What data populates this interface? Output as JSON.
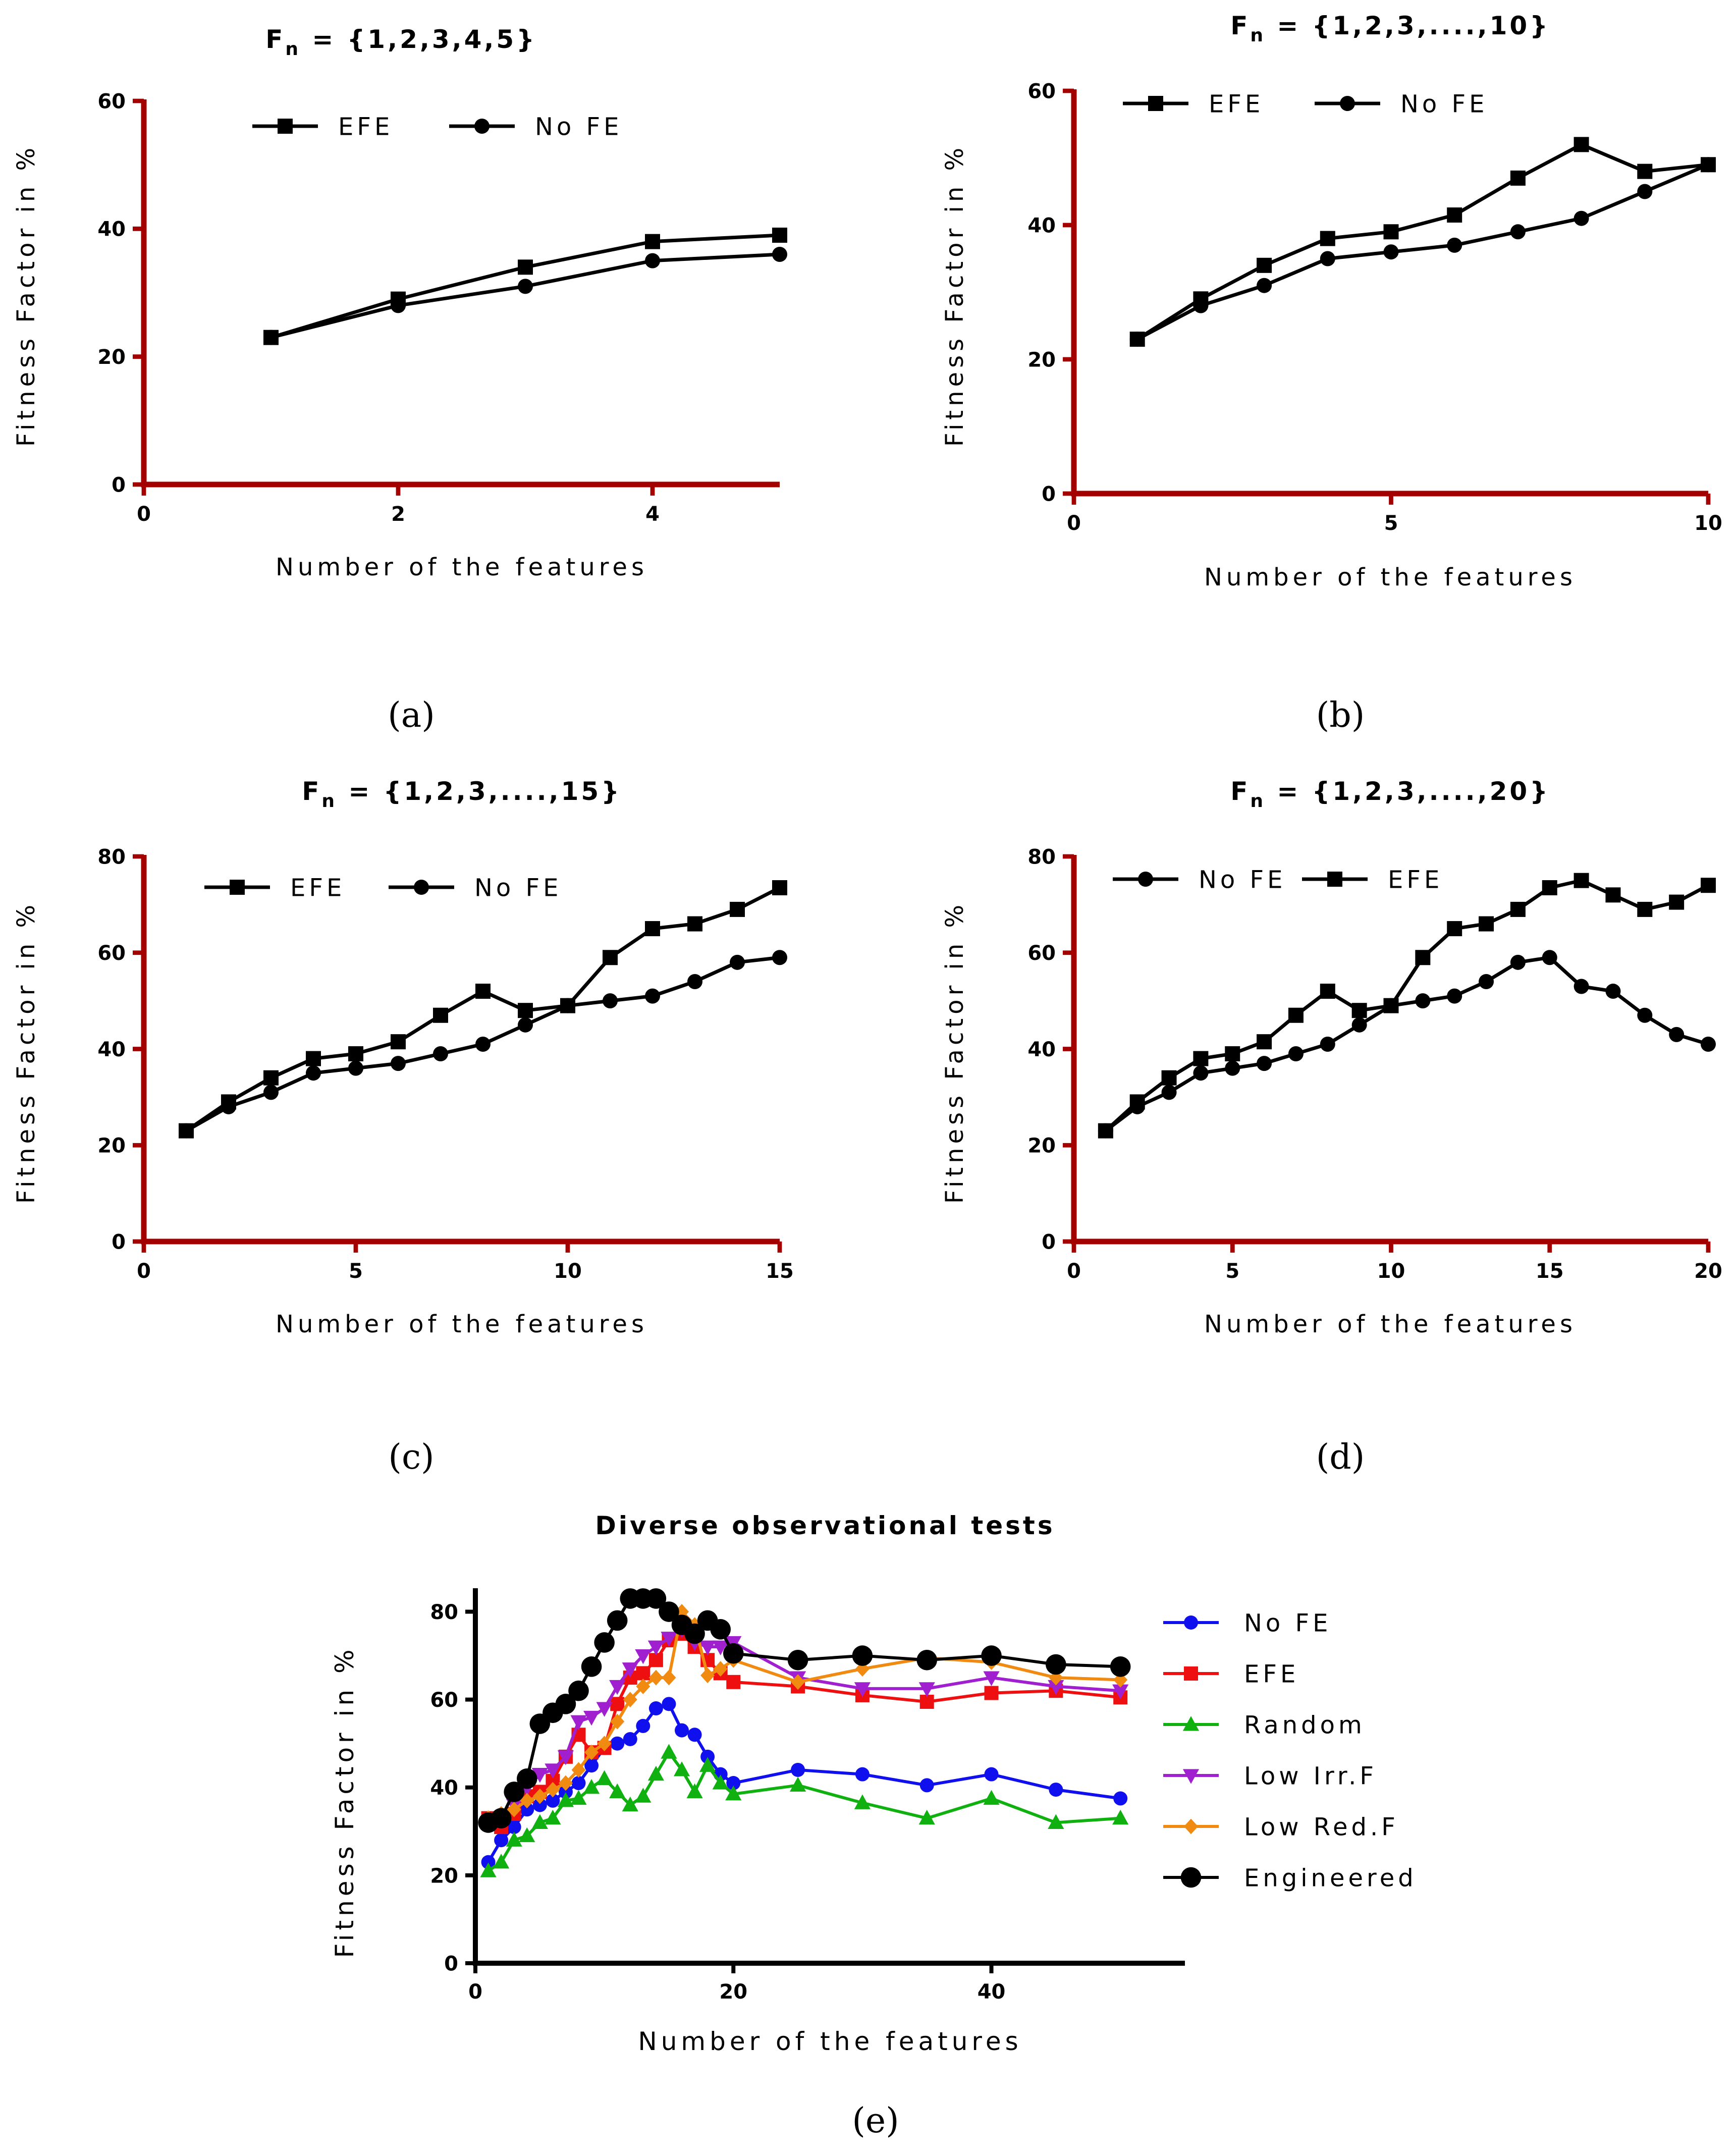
{
  "chart_data": [
    {
      "id": "a",
      "type": "line",
      "title_main": "F",
      "title_sub": "n",
      "title_rest": " = {1,2,3,4,5}",
      "xlabel": "Number of the features",
      "ylabel": "Fitness Factor in %",
      "caption": "(a)",
      "xlim": [
        0,
        5
      ],
      "ylim": [
        0,
        60
      ],
      "xticks": [
        0,
        2,
        4
      ],
      "yticks": [
        0,
        20,
        40,
        60
      ],
      "axis_color": "#a30000",
      "legend_position": "top",
      "series": [
        {
          "name": "EFE",
          "marker": "square",
          "color": "#000000",
          "x": [
            1,
            2,
            3,
            4,
            5
          ],
          "y": [
            23,
            29,
            34,
            38,
            39
          ]
        },
        {
          "name": "No FE",
          "marker": "circle",
          "color": "#000000",
          "x": [
            1,
            2,
            3,
            4,
            5
          ],
          "y": [
            23,
            28,
            31,
            35,
            36
          ]
        }
      ]
    },
    {
      "id": "b",
      "type": "line",
      "title_main": "F",
      "title_sub": "n",
      "title_rest": " = {1,2,3,....,10}",
      "xlabel": "Number of the features",
      "ylabel": "Fitness Factor in %",
      "caption": "(b)",
      "xlim": [
        0,
        10
      ],
      "ylim": [
        0,
        60
      ],
      "xticks": [
        0,
        5,
        10
      ],
      "yticks": [
        0,
        20,
        40,
        60
      ],
      "axis_color": "#a30000",
      "legend_position": "top-left",
      "series": [
        {
          "name": "EFE",
          "marker": "square",
          "color": "#000000",
          "x": [
            1,
            2,
            3,
            4,
            5,
            6,
            7,
            8,
            9,
            10
          ],
          "y": [
            23,
            29,
            34,
            38,
            39,
            41.5,
            47,
            52,
            48,
            49
          ]
        },
        {
          "name": "No FE",
          "marker": "circle",
          "color": "#000000",
          "x": [
            1,
            2,
            3,
            4,
            5,
            6,
            7,
            8,
            9,
            10
          ],
          "y": [
            23,
            28,
            31,
            35,
            36,
            37,
            39,
            41,
            45,
            49
          ]
        }
      ]
    },
    {
      "id": "c",
      "type": "line",
      "title_main": "F",
      "title_sub": "n",
      "title_rest": " = {1,2,3,....,15}",
      "xlabel": "Number of the features",
      "ylabel": "Fitness Factor in %",
      "caption": "(c)",
      "xlim": [
        0,
        15
      ],
      "ylim": [
        0,
        80
      ],
      "xticks": [
        0,
        5,
        10,
        15
      ],
      "yticks": [
        0,
        20,
        40,
        60,
        80
      ],
      "axis_color": "#a30000",
      "legend_position": "top-left",
      "series": [
        {
          "name": "EFE",
          "marker": "square",
          "color": "#000000",
          "x": [
            1,
            2,
            3,
            4,
            5,
            6,
            7,
            8,
            9,
            10,
            11,
            12,
            13,
            14,
            15
          ],
          "y": [
            23,
            29,
            34,
            38,
            39,
            41.5,
            47,
            52,
            48,
            49,
            59,
            65,
            66,
            69,
            73.5
          ]
        },
        {
          "name": "No FE",
          "marker": "circle",
          "color": "#000000",
          "x": [
            1,
            2,
            3,
            4,
            5,
            6,
            7,
            8,
            9,
            10,
            11,
            12,
            13,
            14,
            15
          ],
          "y": [
            23,
            28,
            31,
            35,
            36,
            37,
            39,
            41,
            45,
            49,
            50,
            51,
            54,
            58,
            59
          ]
        }
      ]
    },
    {
      "id": "d",
      "type": "line",
      "title_main": "F",
      "title_sub": "n",
      "title_rest": " = {1,2,3,....,20}",
      "xlabel": "Number of the features",
      "ylabel": "Fitness Factor in %",
      "caption": "(d)",
      "xlim": [
        0,
        20
      ],
      "ylim": [
        0,
        80
      ],
      "xticks": [
        0,
        5,
        10,
        15,
        20
      ],
      "yticks": [
        0,
        20,
        40,
        60,
        80
      ],
      "axis_color": "#a30000",
      "legend_position": "top-left",
      "series": [
        {
          "name": "No FE",
          "marker": "circle",
          "color": "#000000",
          "x": [
            1,
            2,
            3,
            4,
            5,
            6,
            7,
            8,
            9,
            10,
            11,
            12,
            13,
            14,
            15,
            16,
            17,
            18,
            19,
            20
          ],
          "y": [
            23,
            28,
            31,
            35,
            36,
            37,
            39,
            41,
            45,
            49,
            50,
            51,
            54,
            58,
            59,
            53,
            52,
            47,
            43,
            41
          ]
        },
        {
          "name": "EFE",
          "marker": "square",
          "color": "#000000",
          "x": [
            1,
            2,
            3,
            4,
            5,
            6,
            7,
            8,
            9,
            10,
            11,
            12,
            13,
            14,
            15,
            16,
            17,
            18,
            19,
            20
          ],
          "y": [
            23,
            29,
            34,
            38,
            39,
            41.5,
            47,
            52,
            48,
            49,
            59,
            65,
            66,
            69,
            73.5,
            75,
            72,
            69,
            70.5,
            74
          ]
        }
      ]
    },
    {
      "id": "e",
      "type": "line",
      "title": "Diverse observational tests",
      "xlabel": "Number of the features",
      "ylabel": "Fitness Factor in %",
      "caption": "(e)",
      "xlim": [
        0,
        55
      ],
      "ylim": [
        0,
        85
      ],
      "xticks": [
        0,
        20,
        40
      ],
      "yticks": [
        0,
        20,
        40,
        60,
        80
      ],
      "axis_color": "#000000",
      "legend_position": "right",
      "series": [
        {
          "name": "No FE",
          "marker": "circle",
          "color": "#1010ee",
          "x": [
            1,
            2,
            3,
            4,
            5,
            6,
            7,
            8,
            9,
            10,
            11,
            12,
            13,
            14,
            15,
            16,
            17,
            18,
            19,
            20,
            25,
            30,
            35,
            40,
            45,
            50
          ],
          "y": [
            23,
            28,
            31,
            35,
            36,
            37,
            39,
            41,
            45,
            49,
            50,
            51,
            54,
            58,
            59,
            53,
            52,
            47,
            43,
            41,
            44,
            43,
            40.5,
            43,
            39.5,
            37.5
          ]
        },
        {
          "name": "EFE",
          "marker": "square",
          "color": "#ee1010",
          "x": [
            1,
            2,
            3,
            4,
            5,
            6,
            7,
            8,
            9,
            10,
            11,
            12,
            13,
            14,
            15,
            16,
            17,
            18,
            19,
            20,
            25,
            30,
            35,
            40,
            45,
            50
          ],
          "y": [
            33,
            31,
            34,
            38,
            39,
            41.5,
            47,
            52,
            48,
            49,
            59,
            65,
            66,
            69,
            73.5,
            75,
            72,
            69,
            66,
            64,
            63,
            61,
            59.5,
            61.5,
            62,
            60.5
          ]
        },
        {
          "name": "Random",
          "marker": "triangle",
          "color": "#10b010",
          "x": [
            1,
            2,
            3,
            4,
            5,
            6,
            7,
            8,
            9,
            10,
            11,
            12,
            13,
            14,
            15,
            16,
            17,
            18,
            19,
            20,
            25,
            30,
            35,
            40,
            45,
            50
          ],
          "y": [
            21,
            23,
            28,
            29,
            32,
            33,
            37,
            37.5,
            40,
            42,
            39,
            36,
            38,
            43,
            48,
            44,
            39,
            45,
            41,
            38.5,
            40.5,
            36.5,
            33,
            37.5,
            32,
            33
          ]
        },
        {
          "name": "Low Irr.F",
          "marker": "triangle-down",
          "color": "#a020d0",
          "x": [
            1,
            2,
            3,
            4,
            5,
            6,
            7,
            8,
            9,
            10,
            11,
            12,
            13,
            14,
            15,
            16,
            17,
            18,
            19,
            20,
            25,
            30,
            35,
            40,
            45,
            50
          ],
          "y": [
            32,
            33,
            36,
            40,
            43,
            44,
            47,
            55,
            56,
            58,
            63,
            67,
            70,
            72,
            74,
            76,
            73,
            72,
            72,
            73,
            65,
            62.5,
            62.5,
            65,
            63,
            62
          ]
        },
        {
          "name": "Low Red.F",
          "marker": "diamond",
          "color": "#f08a10",
          "x": [
            1,
            2,
            3,
            4,
            5,
            6,
            7,
            8,
            9,
            10,
            11,
            12,
            13,
            14,
            15,
            16,
            17,
            18,
            19,
            20,
            25,
            30,
            35,
            40,
            45,
            50
          ],
          "y": [
            33,
            34,
            35,
            37,
            38,
            39.5,
            41,
            44,
            48,
            50,
            55,
            60,
            63,
            65,
            65,
            80,
            77,
            65.5,
            67,
            69,
            64,
            67,
            69.5,
            68.5,
            65,
            64.5
          ]
        },
        {
          "name": "Engineered",
          "marker": "big-circle",
          "color": "#000000",
          "x": [
            1,
            2,
            3,
            4,
            5,
            6,
            7,
            8,
            9,
            10,
            11,
            12,
            13,
            14,
            15,
            16,
            17,
            18,
            19,
            20,
            25,
            30,
            35,
            40,
            45,
            50
          ],
          "y": [
            32,
            33,
            39,
            42,
            54.5,
            57,
            59,
            62,
            67.5,
            73,
            78,
            83,
            83,
            83,
            80,
            77,
            75,
            78,
            76,
            70.5,
            69,
            70,
            69,
            70,
            68,
            67.5
          ]
        }
      ]
    }
  ]
}
